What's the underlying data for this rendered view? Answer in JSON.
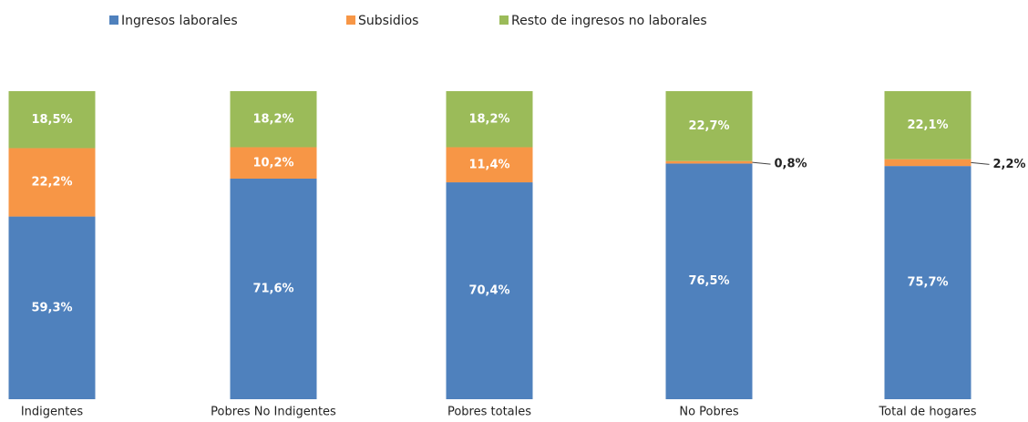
{
  "chart_data": {
    "type": "stacked_bar",
    "categories": [
      "Indigentes",
      "Pobres No Indigentes",
      "Pobres totales",
      "No Pobres",
      "Total de hogares"
    ],
    "series": [
      {
        "name": "Ingresos laborales",
        "color": "#4f81bd",
        "values": [
          59.3,
          71.6,
          70.4,
          76.5,
          75.7
        ],
        "value_labels": [
          "59,3%",
          "71,6%",
          "70,4%",
          "76,5%",
          "75,7%"
        ]
      },
      {
        "name": "Subsidios",
        "color": "#f79646",
        "values": [
          22.2,
          10.2,
          11.4,
          0.8,
          2.2
        ],
        "value_labels": [
          "22,2%",
          "10,2%",
          "11,4%",
          "0,8%",
          "2,2%"
        ]
      },
      {
        "name": "Resto de ingresos no laborales",
        "color": "#9bbb59",
        "values": [
          18.5,
          18.2,
          18.2,
          22.7,
          22.1
        ],
        "value_labels": [
          "18,5%",
          "18,2%",
          "18,2%",
          "22,7%",
          "22,1%"
        ]
      }
    ],
    "legend": "top"
  }
}
